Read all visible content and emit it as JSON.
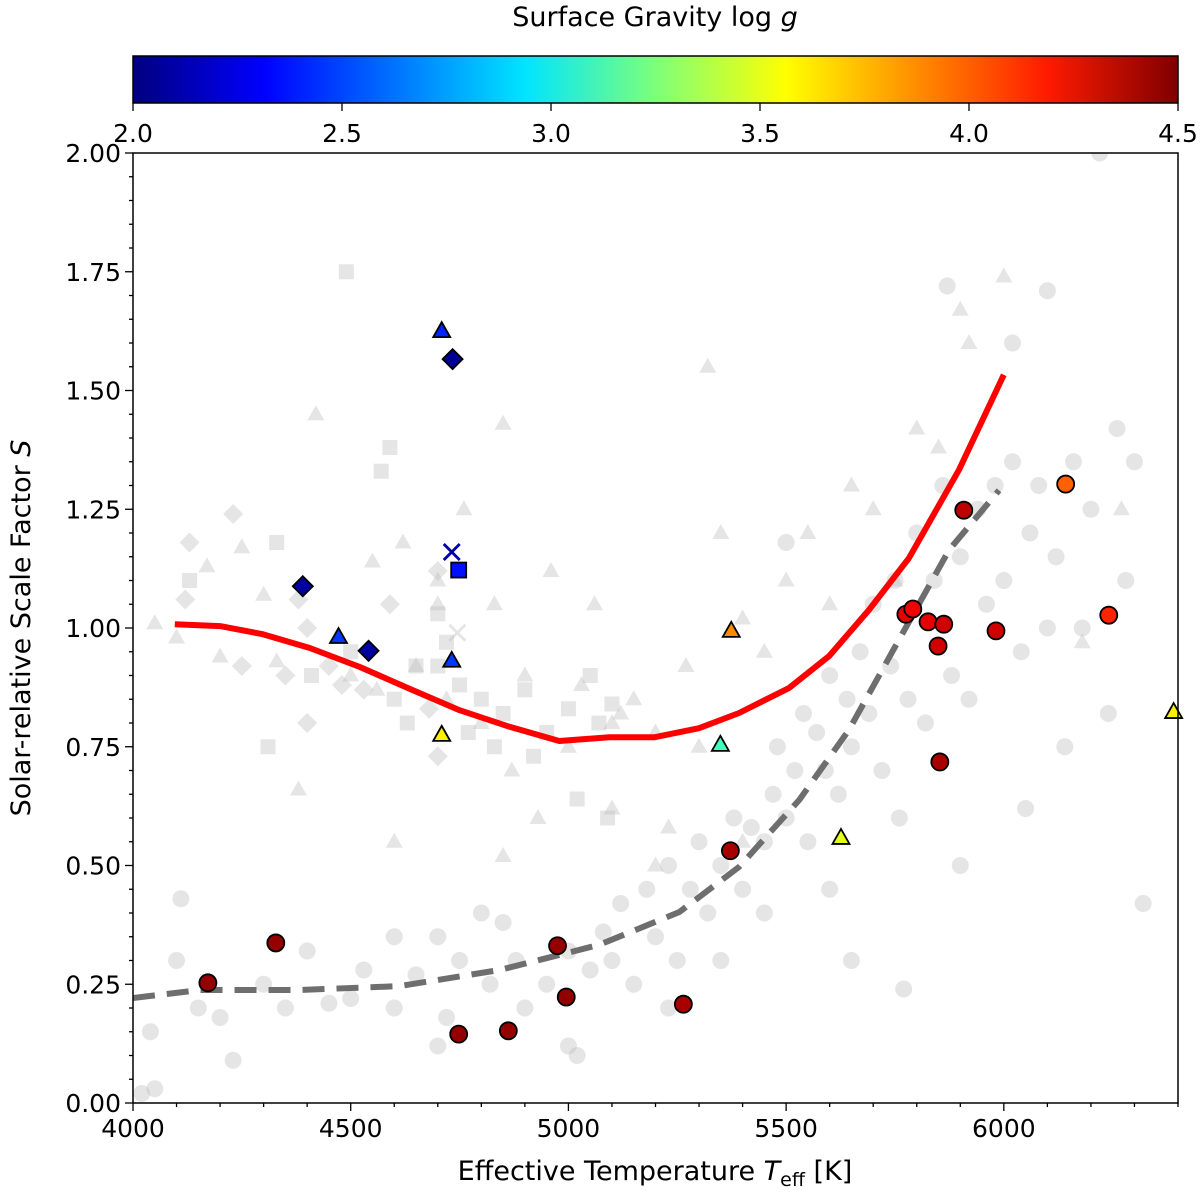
{
  "chart_data": {
    "type": "scatter",
    "xlabel": {
      "prefix": "Effective Temperature ",
      "symbol": "T",
      "subscript": "eff",
      "suffix": " [K]"
    },
    "ylabel": {
      "prefix": "Solar-relative Scale Factor ",
      "symbol": "S"
    },
    "xlim": [
      4000,
      6400
    ],
    "ylim": [
      0,
      2.0
    ],
    "xticks": [
      4000,
      4500,
      5000,
      5500,
      6000
    ],
    "yticks": [
      "0.00",
      "0.25",
      "0.50",
      "0.75",
      "1.00",
      "1.25",
      "1.50",
      "1.75",
      "2.00"
    ],
    "colorbar": {
      "label_prefix": "Surface Gravity log ",
      "label_symbol": "g",
      "colormap": "jet",
      "range": [
        2.0,
        4.5
      ],
      "ticks": [
        "2.0",
        "2.5",
        "3.0",
        "3.5",
        "4.0",
        "4.5"
      ]
    },
    "curves": [
      {
        "name": "red-fit",
        "color": "#ff0000",
        "style": "solid",
        "x": [
          4096,
          4200,
          4298,
          4406,
          4521,
          4635,
          4750,
          4865,
          4979,
          5094,
          5197,
          5300,
          5392,
          5507,
          5599,
          5690,
          5782,
          5897,
          6000
        ],
        "y": [
          1.008,
          1.004,
          0.987,
          0.958,
          0.918,
          0.872,
          0.827,
          0.792,
          0.762,
          0.77,
          0.77,
          0.789,
          0.821,
          0.874,
          0.941,
          1.038,
          1.147,
          1.333,
          1.533
        ]
      },
      {
        "name": "gray-dashed-fit",
        "color": "#6e6e6e",
        "style": "dashed",
        "x": [
          4000,
          4154,
          4383,
          4612,
          4842,
          5071,
          5255,
          5392,
          5530,
          5644,
          5759,
          5874,
          5989
        ],
        "y": [
          0.221,
          0.238,
          0.238,
          0.246,
          0.28,
          0.333,
          0.402,
          0.497,
          0.638,
          0.785,
          0.975,
          1.164,
          1.29
        ]
      }
    ],
    "highlighted_points": [
      {
        "marker": "circle",
        "T": 4172,
        "S": 0.253,
        "logg": 4.45
      },
      {
        "marker": "circle",
        "T": 4328,
        "S": 0.337,
        "logg": 4.45
      },
      {
        "marker": "circle",
        "T": 4748,
        "S": 0.145,
        "logg": 4.45
      },
      {
        "marker": "circle",
        "T": 4862,
        "S": 0.152,
        "logg": 4.45
      },
      {
        "marker": "circle",
        "T": 4975,
        "S": 0.331,
        "logg": 4.45
      },
      {
        "marker": "circle",
        "T": 4995,
        "S": 0.223,
        "logg": 4.45
      },
      {
        "marker": "circle",
        "T": 5264,
        "S": 0.208,
        "logg": 4.4
      },
      {
        "marker": "circle",
        "T": 5372,
        "S": 0.531,
        "logg": 4.4
      },
      {
        "marker": "circle",
        "T": 5775,
        "S": 1.029,
        "logg": 4.25
      },
      {
        "marker": "circle",
        "T": 5791,
        "S": 1.04,
        "logg": 4.22
      },
      {
        "marker": "circle",
        "T": 5826,
        "S": 1.013,
        "logg": 4.25
      },
      {
        "marker": "circle",
        "T": 5862,
        "S": 1.008,
        "logg": 4.3
      },
      {
        "marker": "circle",
        "T": 5849,
        "S": 0.962,
        "logg": 4.3
      },
      {
        "marker": "circle",
        "T": 5853,
        "S": 0.718,
        "logg": 4.4
      },
      {
        "marker": "circle",
        "T": 5908,
        "S": 1.248,
        "logg": 4.35
      },
      {
        "marker": "circle",
        "T": 5982,
        "S": 0.994,
        "logg": 4.3
      },
      {
        "marker": "circle",
        "T": 6142,
        "S": 1.303,
        "logg": 3.95
      },
      {
        "marker": "circle",
        "T": 6241,
        "S": 1.027,
        "logg": 4.1
      },
      {
        "marker": "triangle",
        "T": 4709,
        "S": 1.625,
        "logg": 2.4
      },
      {
        "marker": "triangle",
        "T": 4472,
        "S": 0.981,
        "logg": 2.45
      },
      {
        "marker": "triangle",
        "T": 4732,
        "S": 0.931,
        "logg": 2.45
      },
      {
        "marker": "triangle",
        "T": 4709,
        "S": 0.775,
        "logg": 3.6
      },
      {
        "marker": "triangle",
        "T": 5374,
        "S": 0.994,
        "logg": 3.85
      },
      {
        "marker": "triangle",
        "T": 5349,
        "S": 0.754,
        "logg": 3.1
      },
      {
        "marker": "triangle",
        "T": 5626,
        "S": 0.558,
        "logg": 3.5
      },
      {
        "marker": "triangle",
        "T": 6390,
        "S": 0.823,
        "logg": 3.6
      },
      {
        "marker": "diamond",
        "T": 4734,
        "S": 1.566,
        "logg": 2.05
      },
      {
        "marker": "diamond",
        "T": 4390,
        "S": 1.088,
        "logg": 2.08
      },
      {
        "marker": "diamond",
        "T": 4541,
        "S": 0.952,
        "logg": 2.08
      },
      {
        "marker": "x",
        "T": 4732,
        "S": 1.16,
        "logg": 2.1
      },
      {
        "marker": "square",
        "T": 4748,
        "S": 1.122,
        "logg": 2.35
      }
    ],
    "background_points": {
      "circle": [
        [
          4020,
          0.02
        ],
        [
          4050,
          0.03
        ],
        [
          4040,
          0.15
        ],
        [
          4100,
          0.3
        ],
        [
          4110,
          0.43
        ],
        [
          4150,
          0.2
        ],
        [
          4200,
          0.18
        ],
        [
          4230,
          0.09
        ],
        [
          4300,
          0.25
        ],
        [
          4350,
          0.2
        ],
        [
          4400,
          0.32
        ],
        [
          4450,
          0.21
        ],
        [
          4500,
          0.22
        ],
        [
          4530,
          0.28
        ],
        [
          4600,
          0.2
        ],
        [
          4650,
          0.27
        ],
        [
          4700,
          0.35
        ],
        [
          4720,
          0.18
        ],
        [
          4750,
          0.3
        ],
        [
          4800,
          0.4
        ],
        [
          4820,
          0.25
        ],
        [
          4850,
          0.38
        ],
        [
          4880,
          0.3
        ],
        [
          4900,
          0.2
        ],
        [
          4950,
          0.25
        ],
        [
          5000,
          0.32
        ],
        [
          5020,
          0.1
        ],
        [
          5050,
          0.28
        ],
        [
          5080,
          0.36
        ],
        [
          5100,
          0.3
        ],
        [
          5120,
          0.42
        ],
        [
          5150,
          0.25
        ],
        [
          5180,
          0.45
        ],
        [
          5200,
          0.35
        ],
        [
          5230,
          0.5
        ],
        [
          5250,
          0.3
        ],
        [
          5280,
          0.45
        ],
        [
          5300,
          0.55
        ],
        [
          5320,
          0.4
        ],
        [
          5350,
          0.5
        ],
        [
          5380,
          0.6
        ],
        [
          5400,
          0.45
        ],
        [
          5420,
          0.58
        ],
        [
          5450,
          0.55
        ],
        [
          5470,
          0.65
        ],
        [
          5480,
          0.75
        ],
        [
          5500,
          0.6
        ],
        [
          5520,
          0.7
        ],
        [
          5540,
          0.82
        ],
        [
          5550,
          0.55
        ],
        [
          5570,
          0.78
        ],
        [
          5590,
          0.7
        ],
        [
          5600,
          0.9
        ],
        [
          5620,
          0.65
        ],
        [
          5640,
          0.85
        ],
        [
          5650,
          0.75
        ],
        [
          5670,
          0.95
        ],
        [
          5690,
          0.82
        ],
        [
          5700,
          1.05
        ],
        [
          5720,
          0.7
        ],
        [
          5740,
          0.92
        ],
        [
          5750,
          1.1
        ],
        [
          5760,
          0.6
        ],
        [
          5780,
          0.85
        ],
        [
          5800,
          1.2
        ],
        [
          5820,
          0.8
        ],
        [
          5840,
          1.1
        ],
        [
          5860,
          1.3
        ],
        [
          5880,
          0.9
        ],
        [
          5900,
          1.15
        ],
        [
          5920,
          0.85
        ],
        [
          5940,
          1.25
        ],
        [
          5960,
          1.05
        ],
        [
          5980,
          1.3
        ],
        [
          6000,
          1.1
        ],
        [
          6020,
          1.35
        ],
        [
          6040,
          0.95
        ],
        [
          6060,
          1.2
        ],
        [
          6080,
          1.3
        ],
        [
          6100,
          1.0
        ],
        [
          6120,
          1.15
        ],
        [
          6140,
          0.75
        ],
        [
          6160,
          1.35
        ],
        [
          6180,
          1.0
        ],
        [
          6200,
          1.25
        ],
        [
          6220,
          2.0
        ],
        [
          6240,
          0.82
        ],
        [
          6260,
          1.42
        ],
        [
          6280,
          1.1
        ],
        [
          6300,
          1.35
        ],
        [
          6320,
          0.42
        ],
        [
          6100,
          1.71
        ],
        [
          6020,
          1.6
        ],
        [
          5870,
          1.72
        ],
        [
          5500,
          1.18
        ],
        [
          5770,
          0.24
        ],
        [
          5650,
          0.3
        ],
        [
          5900,
          0.5
        ],
        [
          6050,
          0.62
        ],
        [
          5600,
          0.45
        ],
        [
          5450,
          0.4
        ],
        [
          5350,
          0.3
        ],
        [
          5230,
          0.2
        ],
        [
          5000,
          0.12
        ],
        [
          4700,
          0.12
        ],
        [
          4600,
          0.35
        ]
      ],
      "triangle": [
        [
          4050,
          1.01
        ],
        [
          4100,
          0.98
        ],
        [
          4200,
          0.94
        ],
        [
          4170,
          1.13
        ],
        [
          4250,
          1.17
        ],
        [
          4300,
          1.07
        ],
        [
          4330,
          0.93
        ],
        [
          4380,
          0.66
        ],
        [
          4420,
          1.45
        ],
        [
          4500,
          0.9
        ],
        [
          4550,
          1.14
        ],
        [
          4560,
          0.87
        ],
        [
          4620,
          1.18
        ],
        [
          4650,
          0.92
        ],
        [
          4700,
          1.1
        ],
        [
          4720,
          0.85
        ],
        [
          4760,
          1.25
        ],
        [
          4800,
          0.8
        ],
        [
          4830,
          1.05
        ],
        [
          4850,
          1.43
        ],
        [
          4870,
          0.7
        ],
        [
          4900,
          0.9
        ],
        [
          4930,
          0.6
        ],
        [
          4960,
          1.12
        ],
        [
          5000,
          0.75
        ],
        [
          5030,
          0.88
        ],
        [
          5060,
          1.05
        ],
        [
          5100,
          0.62
        ],
        [
          5120,
          0.82
        ],
        [
          5150,
          0.85
        ],
        [
          5200,
          0.78
        ],
        [
          5230,
          0.58
        ],
        [
          5270,
          0.92
        ],
        [
          5300,
          0.75
        ],
        [
          5320,
          1.55
        ],
        [
          5350,
          1.2
        ],
        [
          5400,
          1.02
        ],
        [
          5450,
          0.95
        ],
        [
          5500,
          1.1
        ],
        [
          5550,
          1.2
        ],
        [
          5600,
          1.05
        ],
        [
          5650,
          1.3
        ],
        [
          5700,
          1.25
        ],
        [
          5750,
          1.1
        ],
        [
          5800,
          1.42
        ],
        [
          5850,
          1.38
        ],
        [
          5900,
          1.67
        ],
        [
          5920,
          1.6
        ],
        [
          6000,
          1.74
        ],
        [
          5200,
          0.5
        ],
        [
          5100,
          0.8
        ],
        [
          6180,
          0.97
        ],
        [
          6270,
          1.25
        ],
        [
          5400,
          0.55
        ],
        [
          4700,
          1.05
        ],
        [
          4600,
          0.55
        ],
        [
          4850,
          0.52
        ]
      ],
      "square": [
        [
          4490,
          1.75
        ],
        [
          4590,
          1.38
        ],
        [
          4570,
          1.33
        ],
        [
          4330,
          1.18
        ],
        [
          4130,
          1.1
        ],
        [
          4500,
          0.95
        ],
        [
          4600,
          0.85
        ],
        [
          4650,
          0.92
        ],
        [
          4700,
          1.03
        ],
        [
          4700,
          0.92
        ],
        [
          4750,
          0.88
        ],
        [
          4800,
          0.85
        ],
        [
          4850,
          0.82
        ],
        [
          4900,
          0.87
        ],
        [
          4950,
          0.78
        ],
        [
          5000,
          0.83
        ],
        [
          5050,
          0.9
        ],
        [
          5070,
          0.8
        ],
        [
          5100,
          0.84
        ],
        [
          4830,
          0.75
        ],
        [
          4920,
          0.73
        ],
        [
          5020,
          0.64
        ],
        [
          5090,
          0.6
        ],
        [
          4410,
          0.9
        ],
        [
          4720,
          0.97
        ],
        [
          4310,
          0.75
        ],
        [
          4630,
          0.8
        ],
        [
          4770,
          0.78
        ]
      ],
      "diamond": [
        [
          4130,
          1.18
        ],
        [
          4230,
          1.24
        ],
        [
          4120,
          1.06
        ],
        [
          4380,
          1.06
        ],
        [
          4400,
          1.0
        ],
        [
          4480,
          0.88
        ],
        [
          4350,
          0.9
        ],
        [
          4590,
          1.05
        ],
        [
          4700,
          1.12
        ],
        [
          4680,
          0.83
        ],
        [
          4530,
          0.87
        ],
        [
          4450,
          0.92
        ],
        [
          4250,
          0.92
        ],
        [
          4700,
          0.73
        ],
        [
          4400,
          0.8
        ]
      ],
      "x": [
        [
          4745,
          0.99
        ]
      ]
    }
  }
}
